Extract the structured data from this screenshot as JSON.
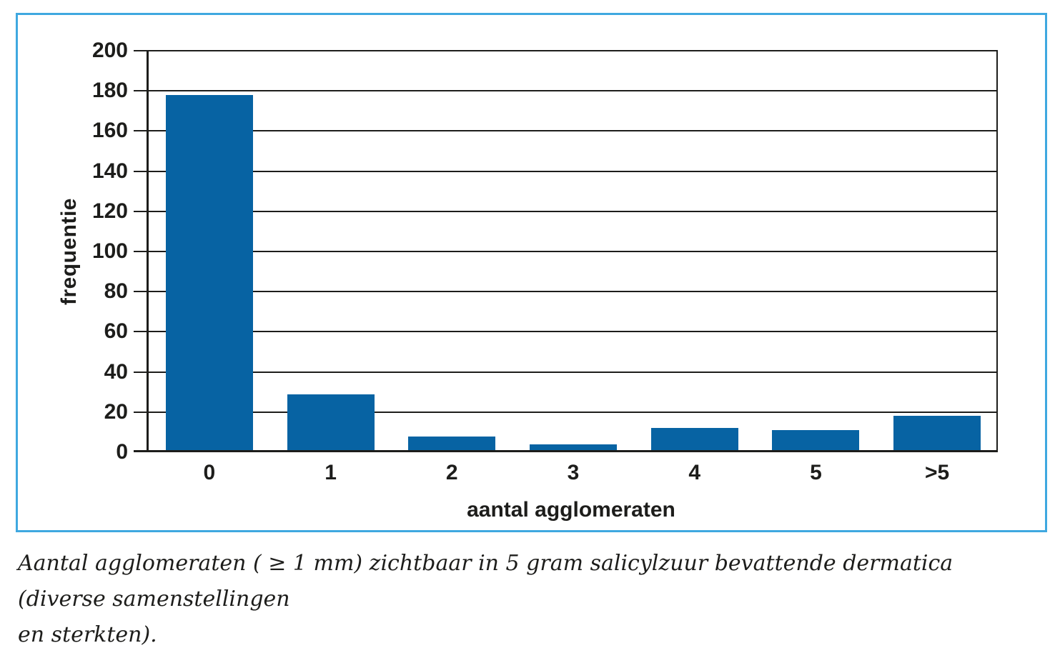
{
  "figure": {
    "caption_line1": "Aantal agglomeraten ( ≥ 1 mm) zichtbaar in 5 gram salicylzuur bevattende dermatica (diverse samenstellingen",
    "caption_line2": "en sterkten)."
  },
  "chart_data": {
    "type": "bar",
    "categories": [
      "0",
      "1",
      "2",
      "3",
      "4",
      "5",
      ">5"
    ],
    "values": [
      178,
      29,
      8,
      4,
      12,
      11,
      18
    ],
    "title": "",
    "xlabel": "aantal agglomeraten",
    "ylabel": "frequentie",
    "ylim": [
      0,
      200
    ],
    "ytick_step": 20,
    "grid": true,
    "legend": "none",
    "bar_color": "#0763a3",
    "colors": {
      "box_border": "#3fa8e0",
      "grid": "#1d1d1b",
      "text": "#1d1d1b",
      "background": "#ffffff"
    }
  }
}
